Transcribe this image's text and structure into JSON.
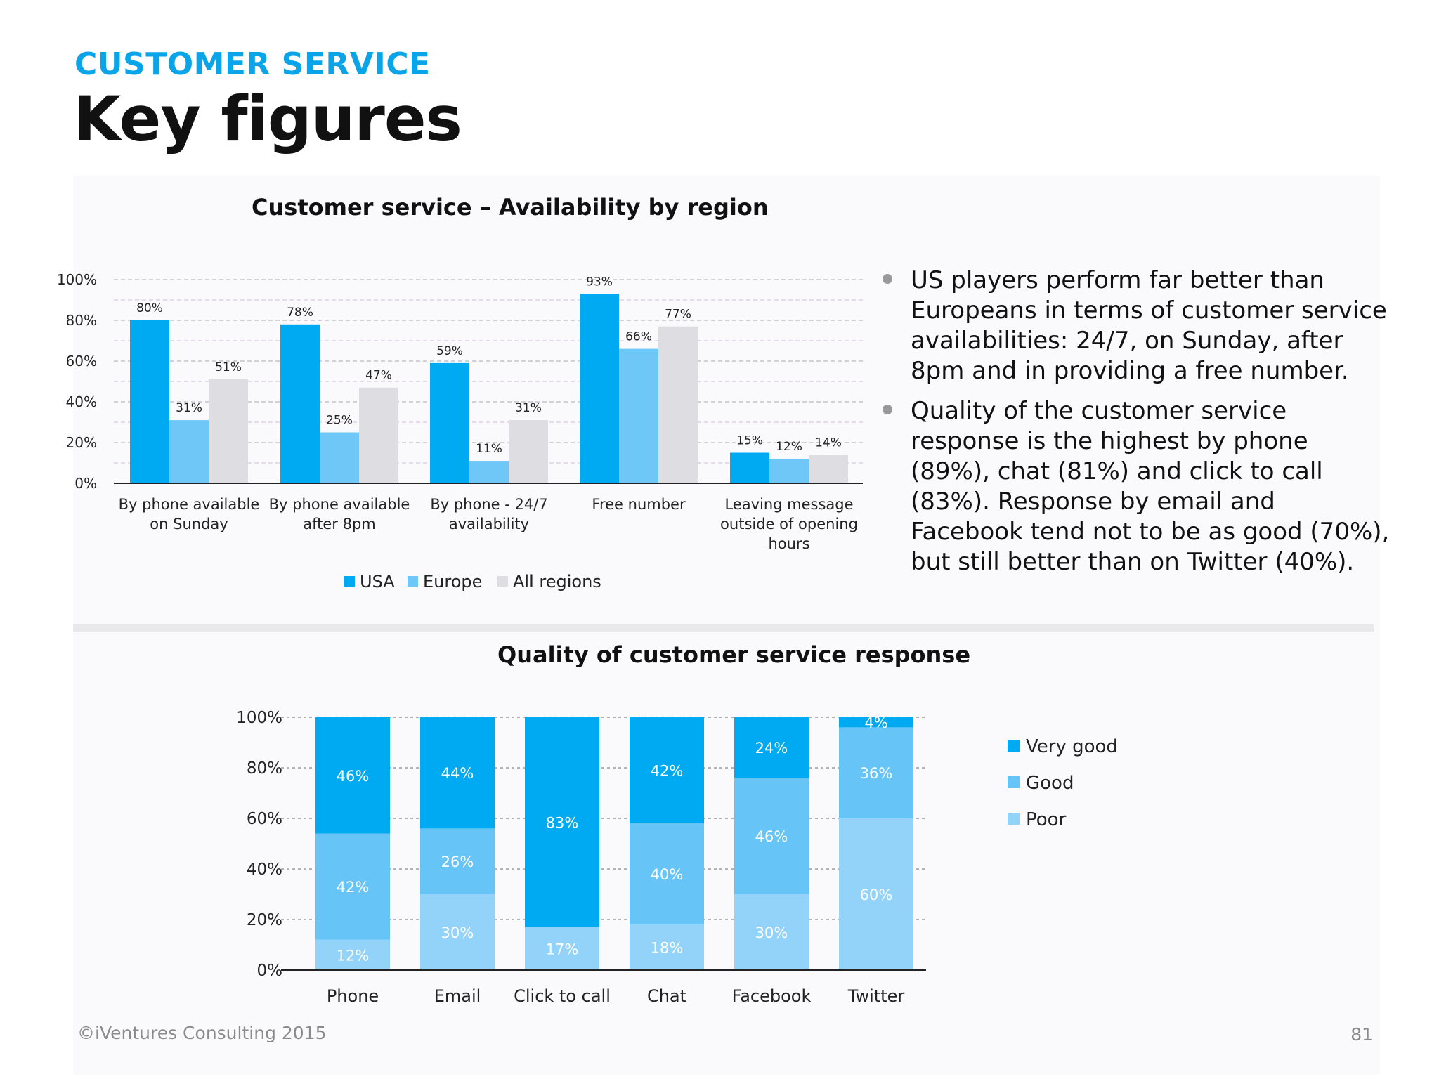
{
  "header": {
    "kicker": "CUSTOMER SERVICE",
    "title": "Key figures"
  },
  "bullets": [
    "US players perform far better than Europeans in terms of customer service availabilities: 24/7, on Sunday, after 8pm and in providing a free number.",
    "Quality of the customer service response is the highest by phone (89%), chat (81%) and click to call (83%).  Response by email and Facebook tend not to be as good (70%), but still better than on Twitter (40%)."
  ],
  "footer": {
    "copyright": "©iVentures Consulting 2015",
    "page_number": "81"
  },
  "chart_data": [
    {
      "type": "bar",
      "title": "Customer service – Availability by region",
      "categories": [
        [
          "By phone available",
          "on Sunday"
        ],
        [
          "By phone available",
          "after 8pm"
        ],
        [
          "By phone - 24/7",
          "availability"
        ],
        [
          "Free number"
        ],
        [
          "Leaving message",
          "outside of opening",
          "hours"
        ]
      ],
      "series": [
        {
          "name": "USA",
          "color": "#00aaf2",
          "values": [
            80,
            78,
            59,
            93,
            15
          ],
          "labels": [
            "80%",
            "78%",
            "59%",
            "93%",
            "15%"
          ]
        },
        {
          "name": "Europe",
          "color": "#6ec7f7",
          "values": [
            31,
            25,
            11,
            66,
            12
          ],
          "labels": [
            "31%",
            "25%",
            "11%",
            "66%",
            "12%"
          ]
        },
        {
          "name": "All regions",
          "color": "#dedde1",
          "values": [
            51,
            47,
            31,
            77,
            14
          ],
          "labels": [
            "51%",
            "47%",
            "31%",
            "77%",
            "14%"
          ]
        }
      ],
      "yticks": [
        "0%",
        "20%",
        "40%",
        "60%",
        "80%",
        "100%"
      ],
      "ylim": [
        0,
        100
      ],
      "grid": true,
      "legend": "bottom"
    },
    {
      "type": "bar",
      "stacked": true,
      "title": "Quality of customer service response",
      "categories": [
        "Phone",
        "Email",
        "Click to call",
        "Chat",
        "Facebook",
        "Twitter"
      ],
      "series": [
        {
          "name": "Poor",
          "color": "#93d3fa",
          "values": [
            12,
            30,
            17,
            18,
            30,
            60
          ],
          "labels": [
            "12%",
            "30%",
            "17%",
            "18%",
            "30%",
            "60%"
          ]
        },
        {
          "name": "Good",
          "color": "#66c4f7",
          "values": [
            42,
            26,
            0,
            40,
            46,
            36
          ],
          "labels": [
            "42%",
            "26%",
            "",
            "40%",
            "46%",
            "36%"
          ]
        },
        {
          "name": "Very good",
          "color": "#00aaf2",
          "values": [
            46,
            44,
            83,
            42,
            24,
            4
          ],
          "labels": [
            "46%",
            "44%",
            "83%",
            "42%",
            "24%",
            "4%"
          ]
        }
      ],
      "legend_order": [
        "Very good",
        "Good",
        "Poor"
      ],
      "yticks": [
        "0%",
        "20%",
        "40%",
        "60%",
        "80%",
        "100%"
      ],
      "ylim": [
        0,
        100
      ],
      "grid": true,
      "legend": "right"
    }
  ]
}
